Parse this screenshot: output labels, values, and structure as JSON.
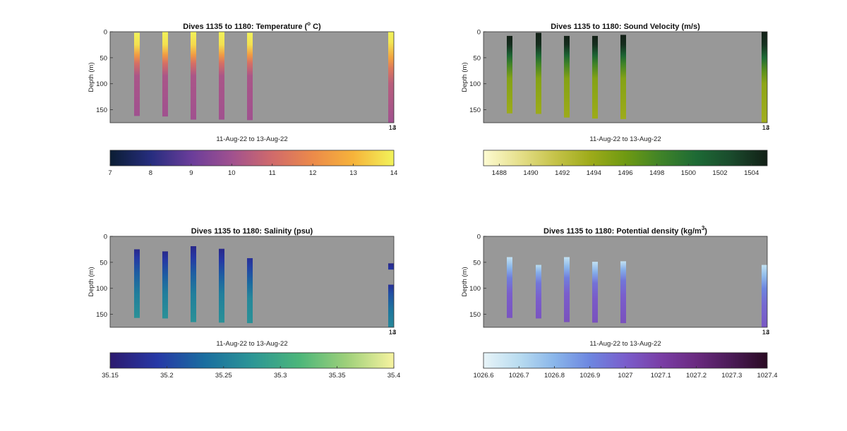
{
  "chart_data": [
    {
      "type": "heatmap",
      "title": "Dives 1135 to 1180: Temperature (",
      "title_sup": "o",
      "title_end": " C)",
      "xlabel": "11-Aug-22 to 13-Aug-22",
      "ylabel": "Depth (m)",
      "y_ticks": [
        "0",
        "50",
        "100",
        "150"
      ],
      "ylim": [
        0,
        175
      ],
      "y_reversed": true,
      "x_tick_labels": [
        "13",
        "14"
      ],
      "background": "#989898",
      "colorbar": {
        "min": 7,
        "max": 14,
        "tick_labels": [
          "7",
          "8",
          "9",
          "10",
          "11",
          "12",
          "13",
          "14"
        ],
        "colors": [
          "#0b1d33",
          "#262d7e",
          "#6a3d9a",
          "#a0518f",
          "#d06a6b",
          "#ec8a4a",
          "#f6b33a",
          "#f2f35a"
        ]
      },
      "profiles": [
        {
          "top": 2,
          "bottom": 162,
          "stops": [
            [
              0,
              14.0
            ],
            [
              25,
              13.7
            ],
            [
              45,
              12.4
            ],
            [
              60,
              11.2
            ],
            [
              85,
              10.2
            ],
            [
              162,
              10.0
            ]
          ]
        },
        {
          "top": 0,
          "bottom": 163,
          "stops": [
            [
              0,
              14.0
            ],
            [
              25,
              13.7
            ],
            [
              45,
              12.4
            ],
            [
              60,
              11.2
            ],
            [
              85,
              10.2
            ],
            [
              163,
              10.0
            ]
          ]
        },
        {
          "top": 0,
          "bottom": 169,
          "stops": [
            [
              0,
              14.0
            ],
            [
              25,
              13.6
            ],
            [
              45,
              12.4
            ],
            [
              60,
              11.2
            ],
            [
              85,
              10.2
            ],
            [
              169,
              10.0
            ]
          ]
        },
        {
          "top": 0,
          "bottom": 169,
          "stops": [
            [
              0,
              14.0
            ],
            [
              25,
              13.7
            ],
            [
              45,
              12.4
            ],
            [
              60,
              11.2
            ],
            [
              85,
              10.2
            ],
            [
              169,
              10.0
            ]
          ]
        },
        {
          "top": 2,
          "bottom": 170,
          "stops": [
            [
              0,
              14.0
            ],
            [
              25,
              13.7
            ],
            [
              45,
              12.4
            ],
            [
              60,
              11.2
            ],
            [
              85,
              10.2
            ],
            [
              170,
              10.0
            ]
          ]
        },
        {
          "top": 0,
          "bottom": 175,
          "stops": [
            [
              0,
              14.0
            ],
            [
              20,
              13.8
            ],
            [
              50,
              12.6
            ],
            [
              70,
              11.5
            ],
            [
              100,
              10.5
            ],
            [
              175,
              10.0
            ]
          ]
        }
      ]
    },
    {
      "type": "heatmap",
      "title": "Dives 1135 to 1180: Sound Velocity (m/s)",
      "xlabel": "11-Aug-22 to 13-Aug-22",
      "ylabel": "Depth (m)",
      "y_ticks": [
        "0",
        "50",
        "100",
        "150"
      ],
      "ylim": [
        0,
        175
      ],
      "y_reversed": true,
      "x_tick_labels": [
        "13",
        "14"
      ],
      "background": "#989898",
      "colorbar": {
        "min": 1487,
        "max": 1505,
        "tick_labels": [
          "1488",
          "1490",
          "1492",
          "1494",
          "1496",
          "1498",
          "1500",
          "1502",
          "1504"
        ],
        "colors": [
          "#fdfbd2",
          "#e6e08c",
          "#c6c34a",
          "#9eab1a",
          "#6f9a12",
          "#3f8328",
          "#1d6a35",
          "#1a4a2c",
          "#121f16"
        ]
      },
      "profiles": [
        {
          "top": 8,
          "bottom": 157,
          "stops": [
            [
              0,
              1505.0
            ],
            [
              25,
              1504.2
            ],
            [
              45,
              1501.0
            ],
            [
              60,
              1498.5
            ],
            [
              90,
              1495.0
            ],
            [
              157,
              1493.8
            ]
          ]
        },
        {
          "top": 2,
          "bottom": 158,
          "stops": [
            [
              0,
              1505.0
            ],
            [
              25,
              1504.2
            ],
            [
              45,
              1501.0
            ],
            [
              60,
              1498.5
            ],
            [
              90,
              1495.0
            ],
            [
              158,
              1493.8
            ]
          ]
        },
        {
          "top": 8,
          "bottom": 165,
          "stops": [
            [
              0,
              1505.0
            ],
            [
              25,
              1504.2
            ],
            [
              45,
              1501.0
            ],
            [
              60,
              1498.5
            ],
            [
              90,
              1495.0
            ],
            [
              165,
              1493.8
            ]
          ]
        },
        {
          "top": 8,
          "bottom": 167,
          "stops": [
            [
              0,
              1505.0
            ],
            [
              25,
              1504.2
            ],
            [
              45,
              1501.0
            ],
            [
              60,
              1498.5
            ],
            [
              90,
              1495.0
            ],
            [
              167,
              1493.8
            ]
          ]
        },
        {
          "top": 6,
          "bottom": 168,
          "stops": [
            [
              0,
              1505.0
            ],
            [
              25,
              1504.2
            ],
            [
              45,
              1501.0
            ],
            [
              60,
              1498.5
            ],
            [
              90,
              1495.0
            ],
            [
              168,
              1493.8
            ]
          ]
        },
        {
          "top": 0,
          "bottom": 175,
          "stops": [
            [
              0,
              1505.0
            ],
            [
              25,
              1504.0
            ],
            [
              50,
              1500.5
            ],
            [
              75,
              1497.0
            ],
            [
              100,
              1494.5
            ],
            [
              175,
              1493.5
            ]
          ]
        }
      ]
    },
    {
      "type": "heatmap",
      "title": "Dives 1135 to 1180: Salinity (psu)",
      "xlabel": "11-Aug-22 to 13-Aug-22",
      "ylabel": "Depth (m)",
      "y_ticks": [
        "0",
        "50",
        "100",
        "150"
      ],
      "ylim": [
        0,
        175
      ],
      "y_reversed": true,
      "x_tick_labels": [
        "13",
        "14"
      ],
      "background": "#989898",
      "colorbar": {
        "min": 35.15,
        "max": 35.4,
        "tick_labels": [
          "35.15",
          "35.2",
          "35.25",
          "35.3",
          "35.35",
          "35.4"
        ],
        "colors": [
          "#2c1a6f",
          "#2638a6",
          "#1a6ea0",
          "#2c9696",
          "#4cb67a",
          "#9ed07a",
          "#f7f3a0"
        ]
      },
      "profiles": [
        {
          "top": 25,
          "bottom": 157,
          "stops": [
            [
              25,
              35.17
            ],
            [
              40,
              35.19
            ],
            [
              70,
              35.22
            ],
            [
              110,
              35.25
            ],
            [
              157,
              35.27
            ]
          ]
        },
        {
          "top": 29,
          "bottom": 158,
          "stops": [
            [
              29,
              35.17
            ],
            [
              45,
              35.19
            ],
            [
              75,
              35.22
            ],
            [
              110,
              35.25
            ],
            [
              158,
              35.27
            ]
          ]
        },
        {
          "top": 19,
          "bottom": 165,
          "stops": [
            [
              19,
              35.17
            ],
            [
              40,
              35.19
            ],
            [
              70,
              35.22
            ],
            [
              110,
              35.25
            ],
            [
              165,
              35.27
            ]
          ]
        },
        {
          "top": 24,
          "bottom": 166,
          "stops": [
            [
              24,
              35.17
            ],
            [
              45,
              35.19
            ],
            [
              75,
              35.22
            ],
            [
              110,
              35.25
            ],
            [
              166,
              35.27
            ]
          ]
        },
        {
          "top": 42,
          "bottom": 167,
          "stops": [
            [
              42,
              35.18
            ],
            [
              60,
              35.2
            ],
            [
              90,
              35.23
            ],
            [
              120,
              35.26
            ],
            [
              167,
              35.27
            ]
          ]
        },
        {
          "top": 52,
          "bottom": 64,
          "stops": [
            [
              52,
              35.17
            ],
            [
              64,
              35.19
            ]
          ]
        },
        {
          "top": 93,
          "bottom": 175,
          "stops": [
            [
              93,
              35.18
            ],
            [
              110,
              35.21
            ],
            [
              140,
              35.24
            ],
            [
              175,
              35.26
            ]
          ]
        }
      ]
    },
    {
      "type": "heatmap",
      "title": "Dives 1135 to 1180: Potential density (kg/m",
      "title_sup": "3",
      "title_end": ")",
      "xlabel": "11-Aug-22 to 13-Aug-22",
      "ylabel": "Depth (m)",
      "y_ticks": [
        "0",
        "50",
        "100",
        "150"
      ],
      "ylim": [
        0,
        175
      ],
      "y_reversed": true,
      "x_tick_labels": [
        "13",
        "14"
      ],
      "background": "#989898",
      "colorbar": {
        "min": 1026.6,
        "max": 1027.4,
        "tick_labels": [
          "1026.6",
          "1026.7",
          "1026.8",
          "1026.9",
          "1027",
          "1027.1",
          "1027.2",
          "1027.3",
          "1027.4"
        ],
        "colors": [
          "#e8f4f8",
          "#b9dcf0",
          "#8ab6ea",
          "#6d86e0",
          "#7a5ecc",
          "#7a3ea6",
          "#6a2a80",
          "#4a1a56",
          "#2a0a22"
        ]
      },
      "profiles": [
        {
          "top": 40,
          "bottom": 157,
          "stops": [
            [
              40,
              1026.68
            ],
            [
              60,
              1026.8
            ],
            [
              80,
              1026.92
            ],
            [
              110,
              1027.0
            ],
            [
              157,
              1027.03
            ]
          ]
        },
        {
          "top": 55,
          "bottom": 158,
          "stops": [
            [
              55,
              1026.7
            ],
            [
              70,
              1026.82
            ],
            [
              90,
              1026.94
            ],
            [
              120,
              1027.0
            ],
            [
              158,
              1027.03
            ]
          ]
        },
        {
          "top": 40,
          "bottom": 165,
          "stops": [
            [
              40,
              1026.68
            ],
            [
              60,
              1026.8
            ],
            [
              80,
              1026.92
            ],
            [
              110,
              1027.0
            ],
            [
              165,
              1027.04
            ]
          ]
        },
        {
          "top": 49,
          "bottom": 166,
          "stops": [
            [
              49,
              1026.68
            ],
            [
              70,
              1026.82
            ],
            [
              90,
              1026.95
            ],
            [
              120,
              1027.01
            ],
            [
              166,
              1027.04
            ]
          ]
        },
        {
          "top": 48,
          "bottom": 167,
          "stops": [
            [
              48,
              1026.68
            ],
            [
              65,
              1026.82
            ],
            [
              85,
              1026.94
            ],
            [
              115,
              1027.0
            ],
            [
              167,
              1027.04
            ]
          ]
        },
        {
          "top": 55,
          "bottom": 175,
          "stops": [
            [
              55,
              1026.68
            ],
            [
              75,
              1026.78
            ],
            [
              100,
              1026.9
            ],
            [
              130,
              1026.97
            ],
            [
              175,
              1027.02
            ]
          ]
        }
      ]
    }
  ]
}
